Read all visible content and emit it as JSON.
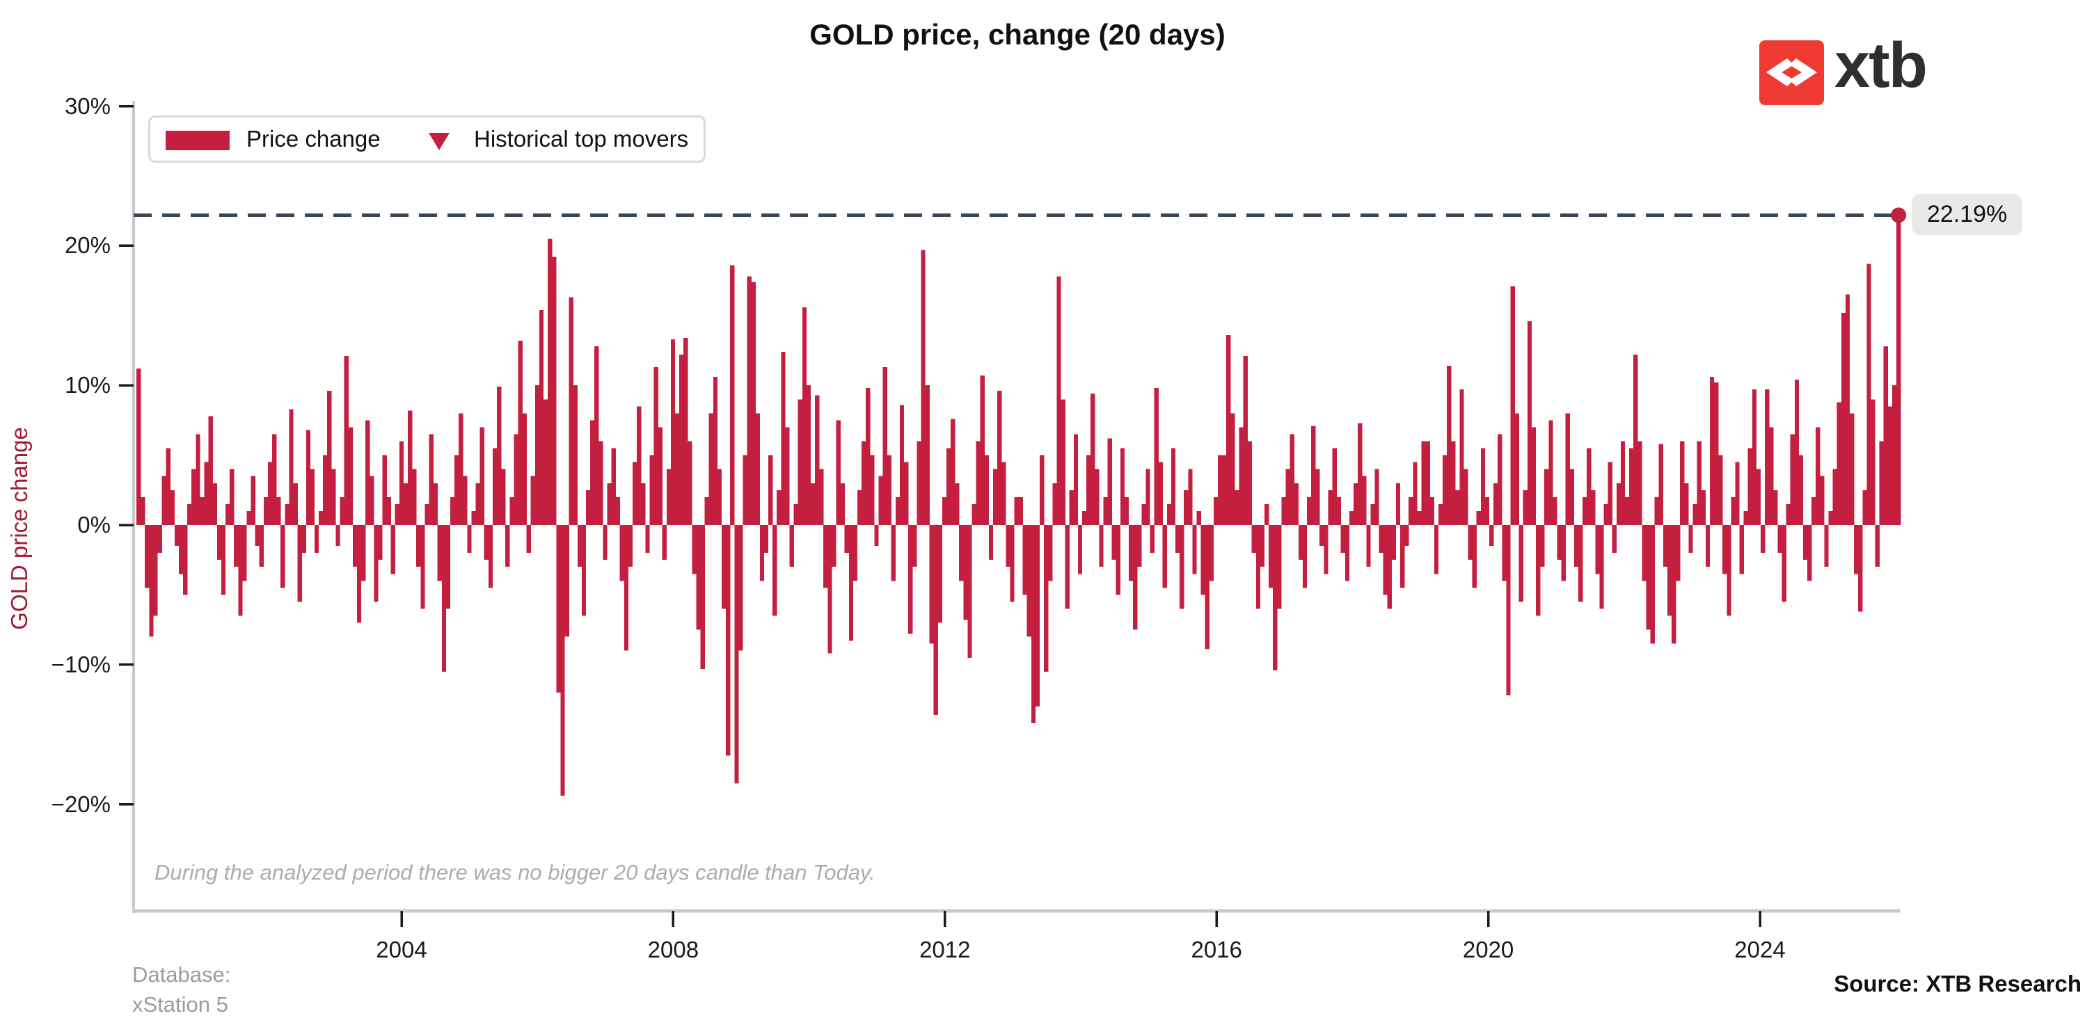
{
  "header": {
    "title": "GOLD price, change (20 days)"
  },
  "logo": {
    "text": "xtb",
    "accent_color": "#ee3a30",
    "mark": "x-arrows-icon"
  },
  "legend": {
    "items": [
      {
        "marker": "bar-swatch",
        "label": "Price change"
      },
      {
        "marker": "triangle-down",
        "label": "Historical top movers"
      }
    ]
  },
  "chart_data": {
    "type": "bar",
    "title": "GOLD price, change (20 days)",
    "xlabel": "",
    "ylabel": "GOLD price change",
    "bar_color": "#c41f3f",
    "dashed_line_color": "#3a4654",
    "axis_color": "#c9c9c9",
    "tick_color": "#1a1a1a",
    "legend_position": "upper left",
    "grid": false,
    "ylim": [
      -27.5,
      30.3
    ],
    "y_ticks": [
      {
        "label": "30%",
        "value": 30
      },
      {
        "label": "20%",
        "value": 20
      },
      {
        "label": "10%",
        "value": 10
      },
      {
        "label": "0%",
        "value": 0
      },
      {
        "label": "−10%",
        "value": -10
      },
      {
        "label": "−20%",
        "value": -20
      }
    ],
    "x_ticks": [
      {
        "label": "2004",
        "year": 2004
      },
      {
        "label": "2008",
        "year": 2008
      },
      {
        "label": "2012",
        "year": 2012
      },
      {
        "label": "2016",
        "year": 2016
      },
      {
        "label": "2020",
        "year": 2020
      },
      {
        "label": "2024",
        "year": 2024
      }
    ],
    "x_start_year": 2000,
    "bars_per_year": 16,
    "today": {
      "value": 22.19,
      "label": "22.19%"
    },
    "values": [
      11.2,
      2.0,
      -4.5,
      -8.0,
      -6.5,
      -2.0,
      3.5,
      5.5,
      2.5,
      -1.5,
      -3.5,
      -5.0,
      1.5,
      4.0,
      6.5,
      2.0,
      4.5,
      7.8,
      3.0,
      -2.5,
      -5.0,
      1.5,
      4.0,
      -3.0,
      -6.5,
      -4.0,
      1.0,
      3.5,
      -1.5,
      -3.0,
      2.0,
      4.5,
      6.5,
      2.0,
      -4.5,
      1.5,
      8.3,
      3.0,
      -5.5,
      -2.0,
      6.8,
      4.0,
      -2.0,
      1.0,
      5.0,
      9.6,
      4.0,
      -1.5,
      2.0,
      12.1,
      7.0,
      -3.0,
      -7.0,
      -4.0,
      7.5,
      3.5,
      -5.5,
      -2.5,
      5.0,
      2.0,
      -3.5,
      1.5,
      6.0,
      3.0,
      8.2,
      4.0,
      -3.0,
      -6.0,
      1.5,
      6.5,
      3.0,
      -4.0,
      -10.5,
      -6.0,
      2.0,
      5.0,
      8.0,
      3.5,
      -2.0,
      1.0,
      3.0,
      7.0,
      -2.5,
      -4.5,
      5.5,
      9.9,
      4.0,
      -3.0,
      2.0,
      6.5,
      13.2,
      8.0,
      -2.0,
      3.5,
      10.0,
      15.4,
      9.0,
      20.5,
      19.2,
      -12.0,
      -19.4,
      -8.0,
      16.3,
      10.0,
      -3.0,
      -6.5,
      2.5,
      7.5,
      12.8,
      6.0,
      -2.5,
      3.0,
      5.5,
      2.0,
      -4.0,
      -9.0,
      -3.0,
      4.5,
      8.5,
      3.0,
      -2.0,
      5.0,
      11.3,
      7.0,
      -2.5,
      4.0,
      13.3,
      8.0,
      12.2,
      13.4,
      6.0,
      -3.5,
      -7.5,
      -10.3,
      2.0,
      8.0,
      10.6,
      4.0,
      -6.0,
      -16.5,
      18.6,
      -18.5,
      -9.0,
      5.0,
      17.8,
      17.4,
      8.0,
      -4.0,
      -2.0,
      5.0,
      -6.5,
      2.5,
      12.4,
      7.0,
      -3.0,
      1.5,
      9.0,
      15.6,
      10.0,
      3.0,
      9.3,
      4.0,
      -4.5,
      -9.2,
      -3.0,
      7.5,
      3.0,
      -2.0,
      -8.3,
      -4.0,
      2.5,
      6.0,
      9.8,
      5.0,
      -1.5,
      3.5,
      11.3,
      5.0,
      -4.0,
      2.0,
      8.6,
      4.5,
      -7.8,
      -3.0,
      6.0,
      19.7,
      10.0,
      -8.5,
      -13.6,
      -7.0,
      2.0,
      5.5,
      7.6,
      3.0,
      -4.0,
      -6.8,
      -9.5,
      1.5,
      6.0,
      10.7,
      5.0,
      -2.5,
      4.0,
      9.6,
      4.5,
      -3.0,
      -5.5,
      2.0,
      2.0,
      -5.0,
      -8.0,
      -14.2,
      -13.0,
      5.0,
      -10.5,
      -4.0,
      3.0,
      17.8,
      9.0,
      -6.0,
      2.5,
      6.5,
      -3.5,
      1.0,
      5.0,
      9.4,
      4.0,
      -3.0,
      2.0,
      6.2,
      -2.5,
      -5.0,
      5.5,
      2.0,
      -4.0,
      -7.5,
      -3.0,
      1.5,
      4.0,
      -2.0,
      9.8,
      4.5,
      -4.5,
      1.5,
      5.5,
      -2.0,
      -6.0,
      2.5,
      4.0,
      -3.5,
      1.0,
      -5.0,
      -8.9,
      -4.0,
      2.0,
      5.0,
      5.0,
      13.6,
      8.0,
      2.5,
      7.0,
      12.1,
      6.0,
      -2.0,
      -6.0,
      -3.0,
      1.5,
      -4.5,
      -10.4,
      -6.0,
      2.0,
      4.0,
      6.5,
      3.0,
      -2.5,
      -4.5,
      2.0,
      7.1,
      4.0,
      -1.5,
      -3.5,
      2.5,
      5.5,
      2.0,
      -2.0,
      -4.0,
      1.0,
      3.0,
      7.3,
      3.5,
      -3.0,
      1.5,
      4.0,
      -2.0,
      -5.0,
      -6.0,
      -2.5,
      3.0,
      -4.5,
      -1.5,
      2.0,
      4.5,
      1.0,
      6.0,
      6.0,
      2.0,
      -3.5,
      1.5,
      5.0,
      11.4,
      6.0,
      2.5,
      9.7,
      4.0,
      -2.5,
      -4.5,
      1.0,
      5.5,
      2.0,
      -1.5,
      3.0,
      6.5,
      -4.0,
      -12.2,
      17.1,
      8.0,
      -5.5,
      2.5,
      14.6,
      7.0,
      -6.5,
      -3.0,
      4.0,
      7.5,
      2.0,
      -2.5,
      -4.0,
      8.0,
      4.0,
      -3.0,
      -5.5,
      2.0,
      5.5,
      2.5,
      -3.5,
      -6.0,
      1.5,
      4.5,
      -2.0,
      3.0,
      6.0,
      2.0,
      5.5,
      12.2,
      6.0,
      -4.0,
      -7.5,
      -8.5,
      2.0,
      5.8,
      -3.0,
      -6.5,
      -8.5,
      -4.0,
      6.0,
      3.0,
      -2.0,
      1.5,
      6.0,
      2.5,
      -3.0,
      10.6,
      10.2,
      5.0,
      -3.5,
      -6.5,
      2.0,
      4.5,
      -3.5,
      1.0,
      5.5,
      9.7,
      4.0,
      -2.0,
      9.7,
      7.0,
      2.5,
      -2.0,
      -5.5,
      1.5,
      6.5,
      10.4,
      5.0,
      -2.5,
      -4.0,
      2.0,
      7.0,
      3.5,
      -3.0,
      1.0,
      4.0,
      8.8,
      15.2,
      16.5,
      8.0,
      -3.5,
      -6.2,
      2.5,
      18.7,
      9.0,
      -3.0,
      6.0,
      12.8,
      8.5,
      10.0,
      22.19
    ]
  },
  "annotations": {
    "no_bigger_candle": "During the analyzed period there was no bigger 20 days candle than Today.",
    "database_line1": "Database:",
    "database_line2": "xStation 5",
    "source": "Source: XTB Research"
  }
}
